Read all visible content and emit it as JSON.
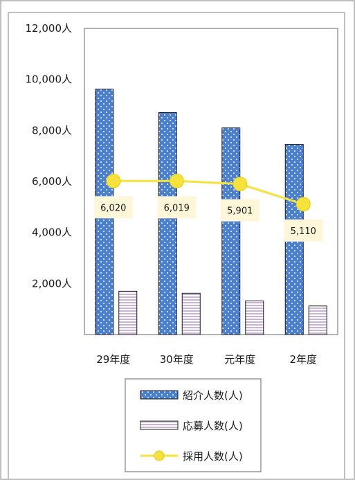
{
  "chart_data": {
    "type": "bar",
    "categories": [
      "29年度",
      "30年度",
      "元年度",
      "2年度"
    ],
    "ylim": [
      0,
      12000
    ],
    "y_ticks": [
      "2,000人",
      "4,000人",
      "6,000人",
      "8,000人",
      "10,000人",
      "12,000人"
    ],
    "y_tick_values": [
      2000,
      4000,
      6000,
      8000,
      10000,
      12000
    ],
    "series": [
      {
        "name": "紹介人数(人)",
        "kind": "bar",
        "values": [
          9620,
          8700,
          8100,
          7450
        ],
        "color": "#4a7fd4"
      },
      {
        "name": "応募人数(人)",
        "kind": "bar",
        "values": [
          1700,
          1620,
          1320,
          1120
        ],
        "color": "#c9b4d6"
      },
      {
        "name": "採用人数(人)",
        "kind": "line",
        "values": [
          6020,
          6019,
          5901,
          5110
        ],
        "labels": [
          "6,020",
          "6,019",
          "5,901",
          "5,110"
        ],
        "color": "#f5e23a"
      }
    ],
    "legend_position": "bottom",
    "grid": false
  }
}
